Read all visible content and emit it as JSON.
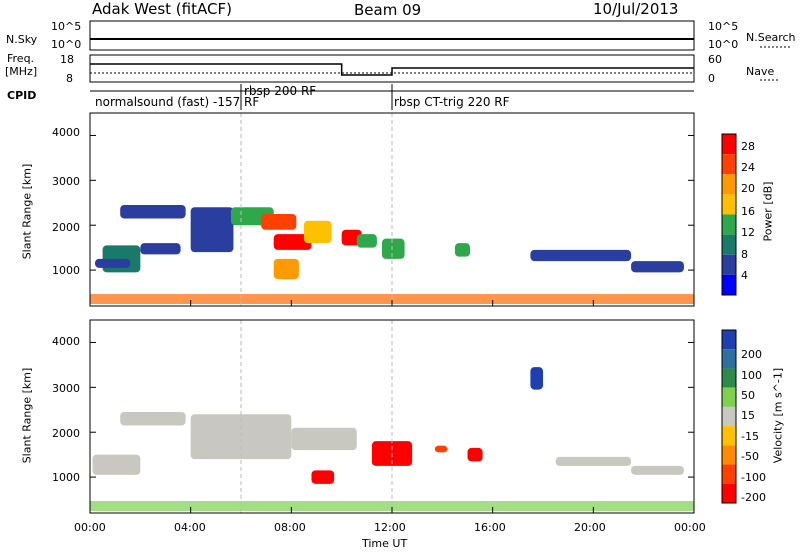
{
  "header": {
    "title": "Adak West (fitACF)",
    "beam": "Beam 09",
    "date": "10/Jul/2013"
  },
  "side_labels": {
    "nsky": "N.Sky",
    "freq_line1": "Freq.",
    "freq_line2": "[MHz]",
    "cpid": "CPID",
    "nsearch": "N.Search",
    "nave": "Nave",
    "nsky_ticks": [
      "10^5",
      "10^0"
    ],
    "nsearch_ticks": [
      "10^5",
      "10^0"
    ],
    "freq_ticks": [
      "18",
      "8"
    ],
    "nave_ticks": [
      "60",
      "0"
    ]
  },
  "cpid_segments": [
    {
      "label": "normalsound (fast) -157 RF",
      "start_hour": 0.0
    },
    {
      "label": "rbsp 200 RF",
      "start_hour": 6.0
    },
    {
      "label": "rbsp CT-trig 220 RF",
      "start_hour": 12.0
    }
  ],
  "chart_data": [
    {
      "type": "heatmap",
      "name": "power-panel",
      "ylabel": "Slant Range [km]",
      "xlabel": "",
      "ylim": [
        200,
        4500
      ],
      "xlim": [
        0,
        24
      ],
      "yticks": [
        1000,
        2000,
        3000,
        4000
      ],
      "colorbar": {
        "label": "Power [dB]",
        "ticks": [
          "28",
          "24",
          "20",
          "16",
          "12",
          "8",
          "4"
        ],
        "colors": [
          "#ff0000",
          "#ff4000",
          "#ff9a00",
          "#ffc000",
          "#2ea84a",
          "#1a7a6a",
          "#2a3ea0",
          "#0000ff"
        ]
      },
      "regions": [
        {
          "x": [
            0.5,
            2.0
          ],
          "y": [
            950,
            1550
          ],
          "level": 5
        },
        {
          "x": [
            0.2,
            1.6
          ],
          "y": [
            1050,
            1250
          ],
          "level": 6
        },
        {
          "x": [
            1.2,
            3.8
          ],
          "y": [
            2150,
            2450
          ],
          "level": 6
        },
        {
          "x": [
            2.0,
            3.6
          ],
          "y": [
            1350,
            1600
          ],
          "level": 6
        },
        {
          "x": [
            4.0,
            5.7
          ],
          "y": [
            1400,
            2400
          ],
          "level": 6
        },
        {
          "x": [
            5.6,
            7.3
          ],
          "y": [
            2000,
            2400
          ],
          "level": 4
        },
        {
          "x": [
            6.8,
            8.2
          ],
          "y": [
            1900,
            2250
          ],
          "level": 1
        },
        {
          "x": [
            7.3,
            8.8
          ],
          "y": [
            1450,
            1800
          ],
          "level": 0
        },
        {
          "x": [
            7.3,
            8.3
          ],
          "y": [
            800,
            1250
          ],
          "level": 2
        },
        {
          "x": [
            8.5,
            9.6
          ],
          "y": [
            1600,
            2100
          ],
          "level": 3
        },
        {
          "x": [
            10.0,
            10.8
          ],
          "y": [
            1550,
            1900
          ],
          "level": 0
        },
        {
          "x": [
            10.6,
            11.4
          ],
          "y": [
            1500,
            1800
          ],
          "level": 4
        },
        {
          "x": [
            11.6,
            12.5
          ],
          "y": [
            1250,
            1700
          ],
          "level": 4
        },
        {
          "x": [
            14.5,
            15.1
          ],
          "y": [
            1300,
            1600
          ],
          "level": 4
        },
        {
          "x": [
            17.5,
            21.5
          ],
          "y": [
            1200,
            1450
          ],
          "level": 6
        },
        {
          "x": [
            21.5,
            23.6
          ],
          "y": [
            950,
            1200
          ],
          "level": 6
        }
      ]
    },
    {
      "type": "heatmap",
      "name": "velocity-panel",
      "ylabel": "Slant Range [km]",
      "xlabel": "Time UT",
      "ylim": [
        200,
        4500
      ],
      "xlim": [
        0,
        24
      ],
      "yticks": [
        1000,
        2000,
        3000,
        4000
      ],
      "xticks": [
        "00:00",
        "04:00",
        "08:00",
        "12:00",
        "16:00",
        "20:00",
        "00:00"
      ],
      "colorbar": {
        "label": "Velocity [m s^-1]",
        "ticks": [
          "200",
          "100",
          "50",
          "15",
          "-15",
          "-50",
          "-100",
          "-200"
        ],
        "colors": [
          "#1f3fb0",
          "#2f6fa0",
          "#2e8a4a",
          "#7ed050",
          "#c8c8c0",
          "#ffc000",
          "#ff8c00",
          "#ff4000",
          "#ff0000"
        ]
      },
      "regions": [
        {
          "x": [
            0.1,
            2.0
          ],
          "y": [
            1050,
            1500
          ],
          "level": 4
        },
        {
          "x": [
            1.2,
            3.8
          ],
          "y": [
            2150,
            2450
          ],
          "level": 4
        },
        {
          "x": [
            4.0,
            8.0
          ],
          "y": [
            1400,
            2400
          ],
          "level": 4
        },
        {
          "x": [
            8.0,
            10.6
          ],
          "y": [
            1600,
            2100
          ],
          "level": 4
        },
        {
          "x": [
            8.8,
            9.7
          ],
          "y": [
            850,
            1150
          ],
          "level": 8
        },
        {
          "x": [
            11.2,
            12.8
          ],
          "y": [
            1250,
            1800
          ],
          "level": 8
        },
        {
          "x": [
            13.7,
            14.2
          ],
          "y": [
            1550,
            1700
          ],
          "level": 7
        },
        {
          "x": [
            15.0,
            15.6
          ],
          "y": [
            1350,
            1650
          ],
          "level": 8
        },
        {
          "x": [
            17.5,
            18.0
          ],
          "y": [
            2950,
            3450
          ],
          "level": 0
        },
        {
          "x": [
            18.5,
            21.5
          ],
          "y": [
            1250,
            1450
          ],
          "level": 4
        },
        {
          "x": [
            21.5,
            23.6
          ],
          "y": [
            1050,
            1250
          ],
          "level": 4
        }
      ]
    }
  ]
}
